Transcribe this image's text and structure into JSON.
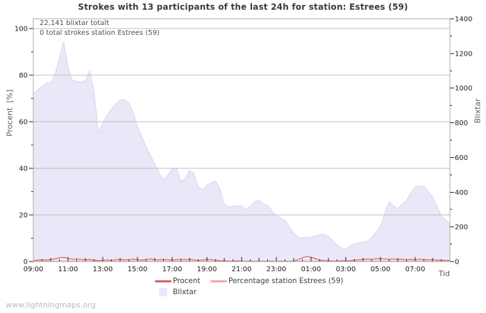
{
  "title": "Strokes with 13 participants of the last 24h for station: Estrees (59)",
  "annotations": {
    "total_blixtar": "22,141 blixtar totalt",
    "station_total": "0 total strokes station Estrees (59)"
  },
  "axes": {
    "left_label": "Procent  [%]",
    "right_label": "Blixtar",
    "x_label": "Tid"
  },
  "legend": [
    {
      "label": "Procent"
    },
    {
      "label": "Percentage station Estrees (59)"
    },
    {
      "label": "Blixtar"
    }
  ],
  "watermark": "www.lightningmaps.org",
  "colors": {
    "area_fill": "#e9e8f8",
    "area_border": "#d7d5f0",
    "procent_line": "#dd6060",
    "station_line": "#f5a6ac",
    "grid": "#bdbdbd",
    "border": "#a8a8a8",
    "tick": "#1a1a1a"
  },
  "chart_data": {
    "type": "area",
    "title": "Strokes with 13 participants of the last 24h for station: Estrees (59)",
    "xlabel": "Tid",
    "ylabel_left": "Procent [%]",
    "ylabel_right": "Blixtar",
    "x_start": "09:00",
    "x_end": "09:00",
    "step_minutes": 15,
    "x_tick_labels": [
      "09:00",
      "11:00",
      "13:00",
      "15:00",
      "17:00",
      "19:00",
      "21:00",
      "23:00",
      "01:00",
      "03:00",
      "05:00",
      "07:00"
    ],
    "x_tick_hours": [
      0,
      2,
      4,
      6,
      8,
      10,
      12,
      14,
      16,
      18,
      20,
      22
    ],
    "y_left": {
      "min": 0,
      "max": 100,
      "ticks": [
        0,
        20,
        40,
        60,
        80,
        100
      ],
      "minor_step": 10
    },
    "y_right": {
      "min": 0,
      "max": 1400,
      "ticks": [
        0,
        200,
        400,
        600,
        800,
        1000,
        1200,
        1400
      ],
      "minor_step": 100
    },
    "grid": "horizontal-only",
    "legend_position": "bottom-center",
    "series": [
      {
        "name": "Blixtar",
        "type": "area",
        "axis": "right",
        "values": [
          965,
          990,
          1010,
          1030,
          1030,
          1080,
          1170,
          1270,
          1120,
          1045,
          1040,
          1035,
          1045,
          1100,
          980,
          745,
          800,
          845,
          880,
          910,
          930,
          935,
          915,
          860,
          780,
          720,
          660,
          610,
          560,
          510,
          470,
          500,
          535,
          540,
          460,
          480,
          525,
          510,
          430,
          415,
          440,
          455,
          465,
          420,
          330,
          315,
          320,
          322,
          320,
          298,
          320,
          345,
          353,
          335,
          322,
          290,
          265,
          250,
          237,
          200,
          165,
          140,
          136,
          138,
          140,
          148,
          155,
          156,
          145,
          120,
          95,
          80,
          72,
          90,
          103,
          108,
          112,
          116,
          140,
          170,
          205,
          280,
          345,
          320,
          305,
          330,
          353,
          395,
          430,
          435,
          433,
          405,
          373,
          320,
          265,
          240,
          217
        ]
      },
      {
        "name": "Procent",
        "type": "line",
        "axis": "left",
        "values": [
          0.3,
          0.6,
          0.8,
          0.6,
          0.9,
          1.2,
          1.6,
          1.8,
          1.4,
          1.0,
          1.1,
          0.9,
          0.7,
          0.9,
          0.6,
          0.4,
          0.5,
          0.7,
          0.5,
          0.8,
          0.9,
          0.7,
          0.8,
          1.0,
          0.8,
          0.6,
          0.9,
          1.1,
          0.8,
          0.7,
          0.9,
          0.8,
          0.6,
          0.8,
          1.0,
          0.8,
          0.9,
          0.7,
          0.5,
          0.7,
          0.9,
          0.8,
          0.6,
          0.4,
          0.3,
          0.2,
          0.2,
          0.3,
          0.2,
          0.1,
          0.2,
          0.1,
          0.2,
          0.1,
          0.1,
          0.2,
          0.1,
          0.2,
          0.1,
          0.1,
          0.2,
          0.8,
          1.6,
          2.2,
          1.8,
          1.2,
          0.7,
          0.4,
          0.3,
          0.2,
          0.2,
          0.3,
          0.3,
          0.4,
          0.6,
          0.8,
          0.9,
          1.1,
          1.0,
          1.2,
          1.3,
          1.1,
          1.0,
          1.1,
          0.9,
          1.0,
          0.8,
          0.9,
          0.8,
          1.0,
          0.9,
          0.7,
          0.8,
          0.6,
          0.6,
          0.5,
          0.5
        ]
      },
      {
        "name": "Percentage station Estrees (59)",
        "type": "line",
        "axis": "left",
        "values": [
          0,
          0,
          0,
          0,
          0,
          0,
          0,
          0,
          0,
          0,
          0,
          0,
          0,
          0,
          0,
          0,
          0,
          0,
          0,
          0,
          0,
          0,
          0,
          0,
          0,
          0,
          0,
          0,
          0,
          0,
          0,
          0,
          0,
          0,
          0,
          0,
          0,
          0,
          0,
          0,
          0,
          0,
          0,
          0,
          0,
          0,
          0,
          0,
          0,
          0,
          0,
          0,
          0,
          0,
          0,
          0,
          0,
          0,
          0,
          0,
          0,
          0,
          0,
          0,
          0,
          0,
          0,
          0,
          0,
          0,
          0,
          0,
          0,
          0,
          0,
          0,
          0,
          0,
          0,
          0,
          0,
          0,
          0,
          0,
          0,
          0,
          0,
          0,
          0,
          0,
          0,
          0,
          0,
          0,
          0,
          0,
          0
        ]
      }
    ]
  }
}
